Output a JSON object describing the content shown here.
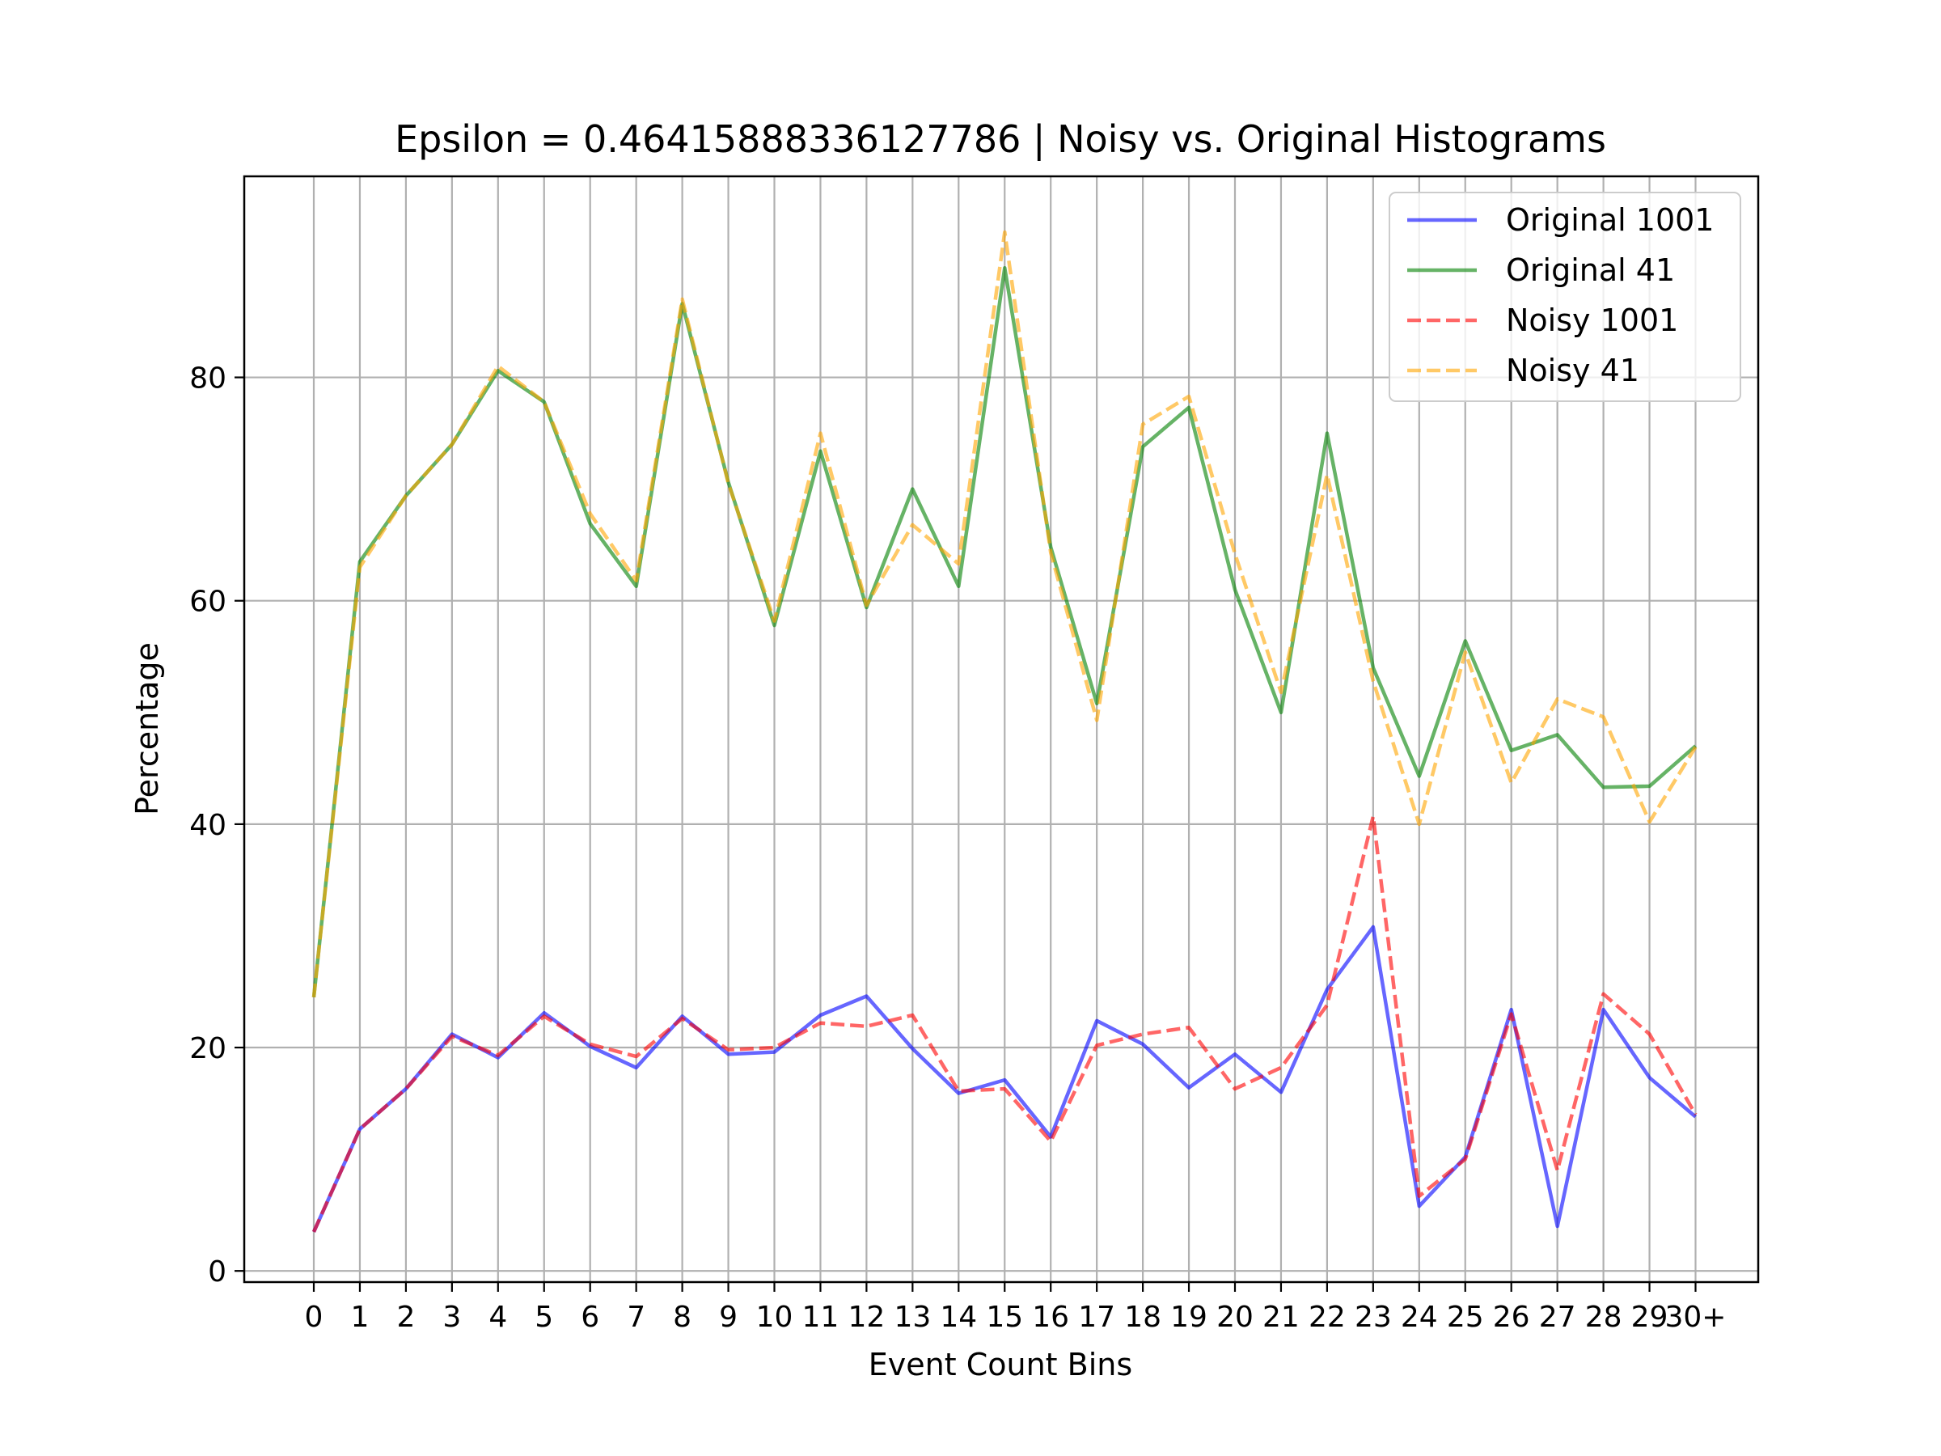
{
  "chart_data": {
    "type": "line",
    "title": "Epsilon = 0.46415888336127786 | Noisy vs. Original Histograms",
    "xlabel": "Event Count Bins",
    "ylabel": "Percentage",
    "categories": [
      "0",
      "1",
      "2",
      "3",
      "4",
      "5",
      "6",
      "7",
      "8",
      "9",
      "10",
      "11",
      "12",
      "13",
      "14",
      "15",
      "16",
      "17",
      "18",
      "19",
      "20",
      "21",
      "22",
      "23",
      "24",
      "25",
      "26",
      "27",
      "28",
      "29",
      "30+"
    ],
    "ylim": [
      -1,
      98
    ],
    "yticks": [
      0,
      20,
      40,
      60,
      80
    ],
    "grid": true,
    "legend_position": "top-right",
    "series": [
      {
        "name": "Original 1001",
        "color": "#0000ff",
        "linestyle": "solid",
        "values": [
          3.5,
          12.7,
          16.3,
          21.2,
          19.1,
          23.1,
          20.1,
          18.2,
          22.8,
          19.4,
          19.6,
          22.9,
          24.6,
          19.9,
          15.9,
          17.1,
          12.0,
          22.4,
          20.3,
          16.4,
          19.4,
          16.0,
          25.2,
          30.8,
          5.8,
          10.2,
          23.4,
          4.0,
          23.4,
          17.3,
          13.8
        ]
      },
      {
        "name": "Original 41",
        "color": "#008000",
        "linestyle": "solid",
        "values": [
          24.5,
          63.5,
          69.4,
          74.0,
          80.6,
          77.8,
          66.9,
          61.3,
          86.6,
          70.6,
          57.8,
          73.4,
          59.4,
          70.0,
          61.3,
          89.8,
          64.8,
          50.8,
          73.8,
          77.3,
          61.0,
          50.0,
          75.0,
          54.0,
          44.3,
          56.4,
          46.6,
          48.0,
          43.3,
          43.4,
          47.0
        ]
      },
      {
        "name": "Noisy 1001",
        "color": "#ff0000",
        "linestyle": "dashed",
        "values": [
          3.5,
          12.7,
          16.3,
          21.0,
          19.3,
          22.8,
          20.3,
          19.2,
          22.6,
          19.8,
          20.0,
          22.2,
          21.9,
          22.9,
          16.1,
          16.3,
          11.6,
          20.2,
          21.2,
          21.8,
          16.3,
          18.2,
          23.8,
          40.7,
          6.7,
          10.0,
          23.0,
          9.0,
          24.8,
          21.2,
          14.0
        ]
      },
      {
        "name": "Noisy 41",
        "color": "#ffa500",
        "linestyle": "dashed",
        "values": [
          24.5,
          63.0,
          69.4,
          74.0,
          81.0,
          77.8,
          67.8,
          61.8,
          87.0,
          70.5,
          58.2,
          75.0,
          59.6,
          66.8,
          63.3,
          93.0,
          64.3,
          49.3,
          75.8,
          78.3,
          64.2,
          51.8,
          71.3,
          52.8,
          40.0,
          55.4,
          43.7,
          51.2,
          49.6,
          40.2,
          46.9
        ]
      }
    ]
  }
}
